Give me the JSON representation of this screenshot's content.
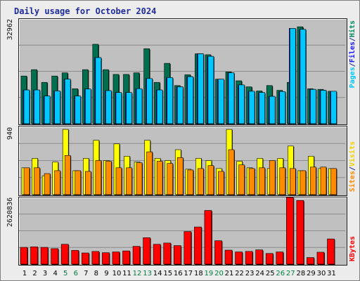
{
  "title": "Daily usage for October 2024",
  "right_labels": {
    "pages": "Pages",
    "files": "Files",
    "hits": "Hits",
    "sites": "Sites",
    "visits": "Visits",
    "kbytes": "KBytes",
    "sep": "/"
  },
  "colors": {
    "hits": "#006f50",
    "files": "#0000ff",
    "pages": "#00c8ff",
    "visits": "#ffff00",
    "sites": "#ff8c00",
    "kbytes": "#ff0000",
    "weekend_day": "#007f3f",
    "panel_bg": "#c0c0c0",
    "title": "#1e2b9a"
  },
  "chart_data": [
    {
      "type": "bar",
      "panel": "top",
      "categories": [
        "1",
        "2",
        "3",
        "4",
        "5",
        "6",
        "7",
        "8",
        "9",
        "10",
        "11",
        "12",
        "13",
        "14",
        "15",
        "16",
        "17",
        "18",
        "19",
        "20",
        "21",
        "22",
        "23",
        "24",
        "25",
        "26",
        "27",
        "28",
        "29",
        "30",
        "31"
      ],
      "weekend_days": [
        "5",
        "6",
        "12",
        "13",
        "19",
        "20",
        "26",
        "27"
      ],
      "ymax_label": "32962",
      "ylim": [
        0,
        32962
      ],
      "grid": true,
      "series": [
        {
          "name": "Hits",
          "values": [
            15000,
            17000,
            13000,
            15000,
            16000,
            11000,
            17000,
            25000,
            17000,
            15500,
            15500,
            16000,
            23600,
            13000,
            19000,
            12000,
            15400,
            22000,
            21700,
            14000,
            16300,
            13500,
            11600,
            10300,
            12000,
            10500,
            13000,
            30500,
            11000,
            10800,
            10200
          ]
        },
        {
          "name": "Files",
          "values": [
            10600,
            10600,
            8700,
            10300,
            14000,
            8700,
            10900,
            20800,
            10400,
            9800,
            9800,
            11000,
            14200,
            10600,
            14500,
            11600,
            14800,
            22000,
            21200,
            14000,
            16000,
            12200,
            10200,
            9800,
            8600,
            10100,
            30000,
            29700,
            10800,
            10500,
            10200
          ]
        },
        {
          "name": "Pages",
          "values": [
            10600,
            10600,
            8700,
            10300,
            14000,
            8700,
            10900,
            20800,
            10400,
            9800,
            9800,
            11000,
            14200,
            10600,
            14500,
            11600,
            14800,
            22000,
            21200,
            14000,
            16000,
            12200,
            10200,
            9800,
            8600,
            10100,
            30000,
            29700,
            10800,
            10500,
            10200
          ]
        }
      ]
    },
    {
      "type": "bar",
      "panel": "middle",
      "categories": [
        "1",
        "2",
        "3",
        "4",
        "5",
        "6",
        "7",
        "8",
        "9",
        "10",
        "11",
        "12",
        "13",
        "14",
        "15",
        "16",
        "17",
        "18",
        "19",
        "20",
        "21",
        "22",
        "23",
        "24",
        "25",
        "26",
        "27",
        "28",
        "29",
        "30",
        "31"
      ],
      "ymax_label": "940",
      "ylim": [
        0,
        940
      ],
      "grid": true,
      "series": [
        {
          "name": "Visits",
          "values": [
            370,
            500,
            260,
            450,
            900,
            330,
            500,
            750,
            470,
            700,
            530,
            450,
            750,
            500,
            470,
            620,
            350,
            500,
            470,
            360,
            900,
            460,
            370,
            500,
            360,
            500,
            670,
            330,
            530,
            360,
            360
          ]
        },
        {
          "name": "Sites",
          "values": [
            370,
            370,
            290,
            330,
            540,
            330,
            320,
            470,
            460,
            370,
            370,
            440,
            590,
            460,
            430,
            510,
            340,
            360,
            400,
            320,
            620,
            410,
            360,
            370,
            470,
            370,
            360,
            330,
            380,
            380,
            360
          ]
        }
      ]
    },
    {
      "type": "bar",
      "panel": "bottom",
      "categories": [
        "1",
        "2",
        "3",
        "4",
        "5",
        "6",
        "7",
        "8",
        "9",
        "10",
        "11",
        "12",
        "13",
        "14",
        "15",
        "16",
        "17",
        "18",
        "19",
        "20",
        "21",
        "22",
        "23",
        "24",
        "25",
        "26",
        "27",
        "28",
        "29",
        "30",
        "31"
      ],
      "ymax_label": "2620836",
      "ylim": [
        0,
        2620836
      ],
      "grid": true,
      "series": [
        {
          "name": "KBytes",
          "values": [
            660000,
            680000,
            660000,
            610000,
            780000,
            540000,
            440000,
            500000,
            450000,
            480000,
            520000,
            700000,
            1040000,
            780000,
            830000,
            730000,
            1280000,
            1460000,
            2110000,
            920000,
            550000,
            480000,
            500000,
            560000,
            420000,
            480000,
            2620000,
            2500000,
            260000,
            470000,
            990000
          ]
        }
      ]
    }
  ]
}
